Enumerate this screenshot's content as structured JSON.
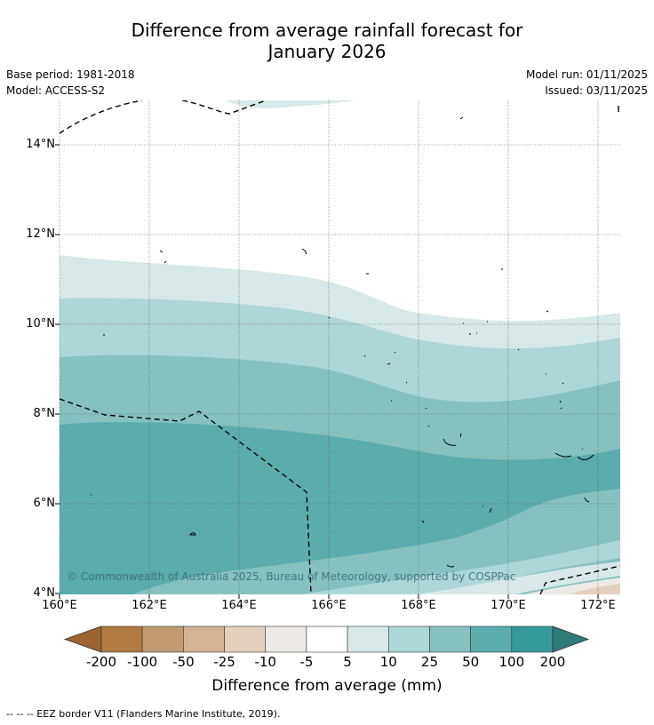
{
  "title": {
    "line1": "Difference from average rainfall forecast for",
    "line2": "January 2026"
  },
  "meta": {
    "base_period": "Base period: 1981-2018",
    "model": "Model: ACCESS-S2",
    "model_run": "Model run: 01/11/2025",
    "issued": "Issued: 03/11/2025"
  },
  "map": {
    "lat_labels": [
      "14°N",
      "12°N",
      "10°N",
      "8°N",
      "6°N",
      "4°N"
    ],
    "lon_labels": [
      "160°E",
      "162°E",
      "164°E",
      "166°E",
      "168°E",
      "170°E",
      "172°E"
    ],
    "copyright": "© Commonwealth of Australia 2025, Bureau of Meteorology, supported by COSPPac"
  },
  "colorbar": {
    "title": "Difference from average (mm)",
    "ticks": [
      "-200",
      "-100",
      "-50",
      "-25",
      "-10",
      "-5",
      "5",
      "10",
      "25",
      "50",
      "100",
      "200"
    ],
    "colors": [
      "#9c6530",
      "#b07a41",
      "#c29a72",
      "#d4b394",
      "#e4d0bf",
      "#ede9e5",
      "#ffffff",
      "#d6e9e8",
      "#add7d6",
      "#86c1c0",
      "#5aacad",
      "#379a9a",
      "#2d7c7a"
    ]
  },
  "footer": {
    "legend": "--  --  -- EEZ border V11 (Flanders Marine Institute, 2019)."
  }
}
